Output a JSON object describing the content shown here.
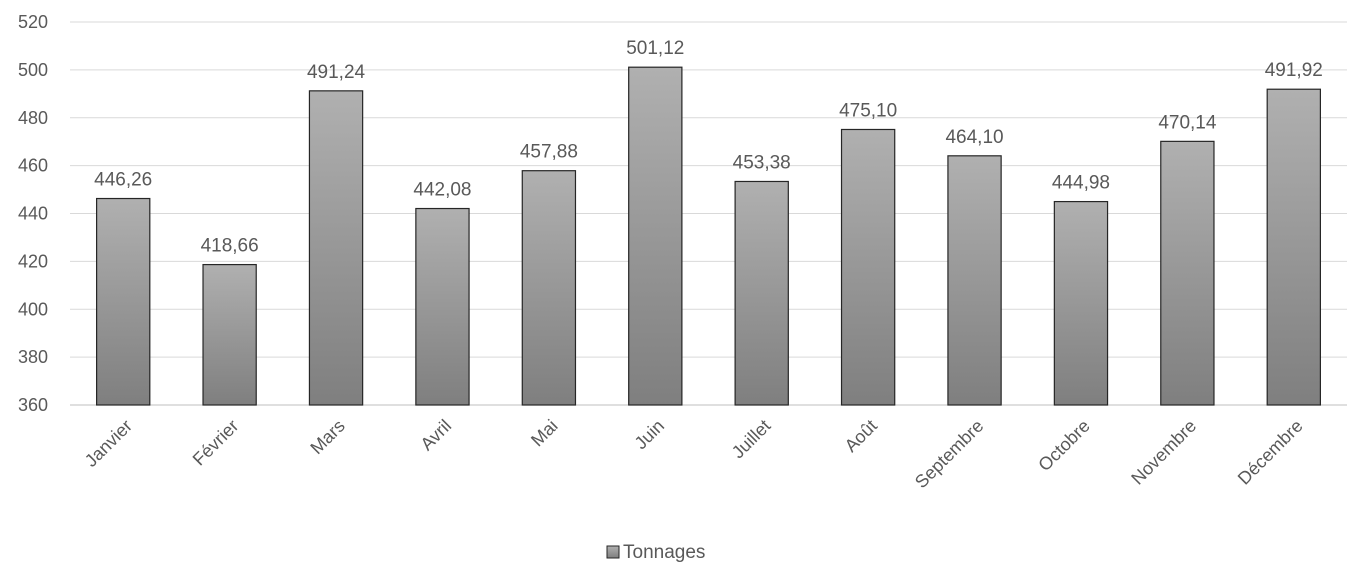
{
  "chart_data": {
    "type": "bar",
    "categories": [
      "Janvier",
      "Février",
      "Mars",
      "Avril",
      "Mai",
      "Juin",
      "Juillet",
      "Août",
      "Septembre",
      "Octobre",
      "Novembre",
      "Décembre"
    ],
    "series": [
      {
        "name": "Tonnages",
        "values": [
          446.26,
          418.66,
          491.24,
          442.08,
          457.88,
          501.12,
          453.38,
          475.1,
          464.1,
          444.98,
          470.14,
          491.92
        ],
        "labels": [
          "446,26",
          "418,66",
          "491,24",
          "442,08",
          "457,88",
          "501,12",
          "453,38",
          "475,10",
          "464,10",
          "444,98",
          "470,14",
          "491,92"
        ]
      }
    ],
    "yticks": [
      "520",
      "500",
      "480",
      "460",
      "440",
      "420",
      "400",
      "380",
      "360"
    ],
    "ylim": [
      360,
      520
    ],
    "grid": true,
    "legend": "bottom",
    "bar_color_top": "#b0b0b0",
    "bar_color_bottom": "#7f7f7f",
    "bar_stroke": "#262626",
    "text_color": "#595959"
  }
}
